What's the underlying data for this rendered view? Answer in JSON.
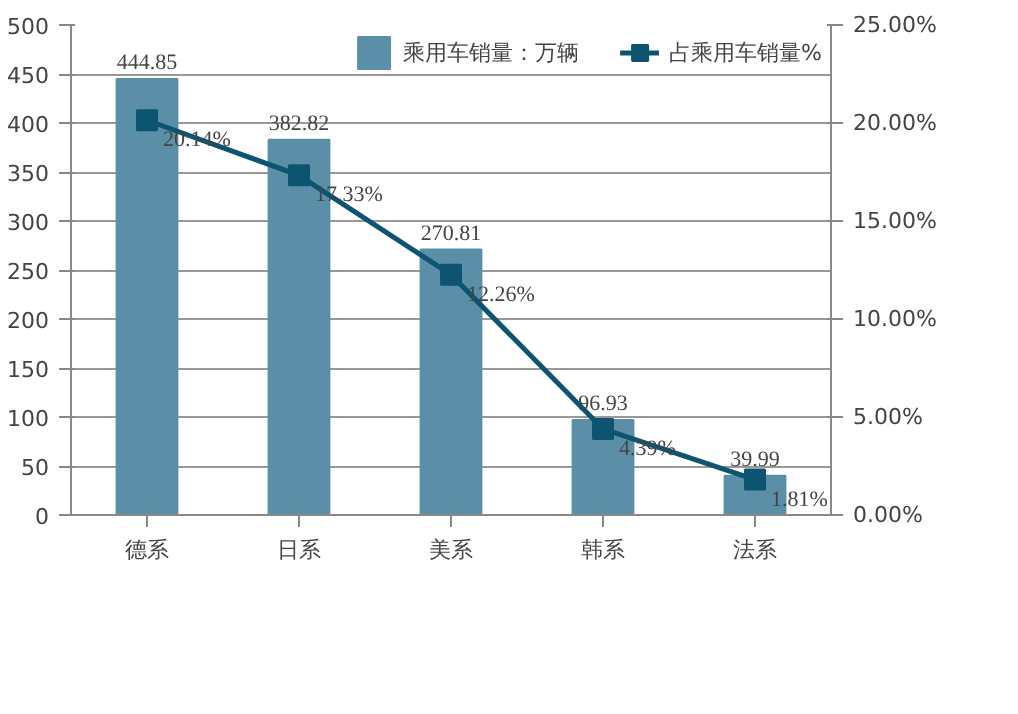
{
  "chart_data": {
    "type": "bar",
    "categories": [
      "德系",
      "日系",
      "美系",
      "韩系",
      "法系"
    ],
    "series": [
      {
        "name": "乘用车销量：万辆",
        "color": "#5b8fa8",
        "values": [
          444.85,
          382.82,
          270.81,
          96.93,
          39.99
        ],
        "value_labels": [
          "444.85",
          "382.82",
          "270.81",
          "96.93",
          "39.99"
        ]
      },
      {
        "name": "占乘用车销量%",
        "type": "line",
        "axis": "y2",
        "color": "#0d5470",
        "marker": "square",
        "values": [
          20.14,
          17.33,
          12.26,
          4.39,
          1.81
        ],
        "value_labels": [
          "20.14%",
          "17.33%",
          "12.26%",
          "4.39%",
          "1.81%"
        ]
      }
    ],
    "ylim": [
      0,
      500
    ],
    "yticks": [
      0,
      50,
      100,
      150,
      200,
      250,
      300,
      350,
      400,
      450,
      500
    ],
    "y2lim": [
      0,
      25
    ],
    "y2ticks": [
      {
        "value": 0,
        "label": "0.00%"
      },
      {
        "value": 5,
        "label": "5.00%"
      },
      {
        "value": 10,
        "label": "10.00%"
      },
      {
        "value": 15,
        "label": "15.00%"
      },
      {
        "value": 20,
        "label": "20.00%"
      },
      {
        "value": 25,
        "label": "25.00%"
      }
    ],
    "grid": "y",
    "legend": "top right"
  }
}
